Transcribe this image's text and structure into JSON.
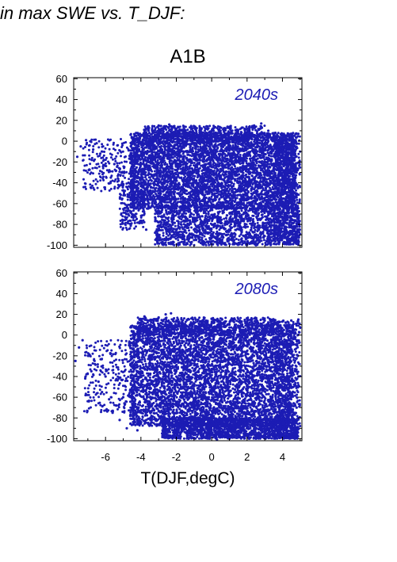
{
  "title": "in max SWE vs. T_DJF:",
  "scenario": "A1B",
  "xlabel": "T(DJF,degC)",
  "point_color": "#1c1cb4",
  "chart_data": [
    {
      "type": "scatter",
      "panel_label": "2040s",
      "xlim": [
        -7.8,
        5.1
      ],
      "ylim": [
        -102,
        61
      ],
      "xticks": [
        -6,
        -4,
        -2,
        0,
        2,
        4
      ],
      "yticks": [
        60,
        40,
        20,
        0,
        -20,
        -40,
        -60,
        -80,
        -100
      ],
      "points": [
        [
          -7.6,
          -15
        ],
        [
          -7.4,
          -5
        ],
        [
          -7.1,
          1
        ],
        [
          -6.9,
          -4
        ],
        [
          -6.7,
          -8
        ],
        [
          -6.5,
          -2
        ],
        [
          -6.3,
          -12
        ],
        [
          -6.1,
          -18
        ],
        [
          -5.9,
          -28
        ],
        [
          -5.7,
          -35
        ],
        [
          -5.5,
          -22
        ],
        [
          -5.3,
          -45
        ],
        [
          -5.1,
          -30
        ],
        [
          -4.9,
          -52
        ],
        [
          -4.7,
          -40
        ],
        [
          -4.5,
          -60
        ],
        [
          -4.3,
          -70
        ],
        [
          -4.1,
          -78
        ],
        [
          -3.9,
          -50
        ],
        [
          -3.7,
          -85
        ],
        [
          -3.6,
          14
        ],
        [
          -3.3,
          10
        ],
        [
          -3.0,
          15
        ],
        [
          -2.7,
          12
        ],
        [
          -2.4,
          16
        ],
        [
          -2.0,
          12
        ],
        [
          -1.5,
          9
        ],
        [
          -1.0,
          8
        ],
        [
          -0.5,
          5
        ],
        [
          0,
          7
        ],
        [
          0.5,
          10
        ],
        [
          1.0,
          8
        ],
        [
          1.5,
          7
        ],
        [
          2.0,
          12
        ],
        [
          2.4,
          15
        ],
        [
          2.8,
          17
        ],
        [
          3.2,
          10
        ],
        [
          3.6,
          8
        ],
        [
          4.0,
          7
        ],
        [
          4.5,
          6
        ],
        [
          4.9,
          7
        ],
        [
          -3.2,
          -88
        ],
        [
          -2.5,
          -80
        ],
        [
          -1.8,
          -92
        ],
        [
          -1.0,
          -95
        ],
        [
          -0.3,
          -88
        ],
        [
          0.5,
          -96
        ],
        [
          1.2,
          -99
        ],
        [
          1.9,
          -92
        ],
        [
          2.5,
          -100
        ],
        [
          3.1,
          -96
        ],
        [
          3.8,
          -98
        ],
        [
          4.4,
          -94
        ],
        [
          4.9,
          -95
        ],
        [
          4.6,
          -60
        ],
        [
          4.8,
          -30
        ],
        [
          4.7,
          -45
        ],
        [
          4.9,
          -75
        ]
      ],
      "dense_regions": [
        {
          "x": [
            -4.6,
            4.8
          ],
          "y": [
            -65,
            8
          ],
          "n": 5200
        },
        {
          "x": [
            -3.9,
            3.0
          ],
          "y": [
            0,
            15
          ],
          "n": 550
        },
        {
          "x": [
            -3.2,
            4.9
          ],
          "y": [
            -100,
            -62
          ],
          "n": 1700
        },
        {
          "x": [
            -7.3,
            -4.4
          ],
          "y": [
            -48,
            2
          ],
          "n": 220
        },
        {
          "x": [
            -5.2,
            -3.8
          ],
          "y": [
            -85,
            -40
          ],
          "n": 200
        },
        {
          "x": [
            3.5,
            5.0
          ],
          "y": [
            -100,
            8
          ],
          "n": 650
        }
      ]
    },
    {
      "type": "scatter",
      "panel_label": "2080s",
      "xlim": [
        -7.8,
        5.1
      ],
      "ylim": [
        -102,
        61
      ],
      "xticks": [
        -6,
        -4,
        -2,
        0,
        2,
        4
      ],
      "yticks": [
        60,
        40,
        20,
        0,
        -20,
        -40,
        -60,
        -80,
        -100
      ],
      "points": [
        [
          -7.7,
          -25
        ],
        [
          -7.5,
          -12
        ],
        [
          -7.3,
          -5
        ],
        [
          -7.0,
          -20
        ],
        [
          -6.8,
          -35
        ],
        [
          -6.6,
          -28
        ],
        [
          -6.4,
          -45
        ],
        [
          -6.2,
          -55
        ],
        [
          -6.0,
          -40
        ],
        [
          -5.8,
          -62
        ],
        [
          -5.6,
          -75
        ],
        [
          -5.4,
          -68
        ],
        [
          -5.2,
          -82
        ],
        [
          -5.0,
          -60
        ],
        [
          -4.8,
          -90
        ],
        [
          -4.6,
          -78
        ],
        [
          -4.4,
          -85
        ],
        [
          -4.2,
          -92
        ],
        [
          -3.8,
          18
        ],
        [
          -3.5,
          14
        ],
        [
          -3.0,
          17
        ],
        [
          -2.6,
          20
        ],
        [
          -2.3,
          21
        ],
        [
          -2.0,
          13
        ],
        [
          -1.5,
          10
        ],
        [
          -1.0,
          11
        ],
        [
          -0.5,
          9
        ],
        [
          0,
          11
        ],
        [
          0.5,
          12
        ],
        [
          1.0,
          10
        ],
        [
          1.5,
          9
        ],
        [
          2.0,
          13
        ],
        [
          2.5,
          12
        ],
        [
          3.0,
          14
        ],
        [
          3.5,
          15
        ],
        [
          4.0,
          13
        ],
        [
          4.5,
          14
        ],
        [
          4.9,
          15
        ],
        [
          -2.8,
          -95
        ],
        [
          -2.0,
          -98
        ],
        [
          -1.3,
          -100
        ],
        [
          -0.5,
          -99
        ],
        [
          0.3,
          -101
        ],
        [
          1.0,
          -100
        ],
        [
          1.8,
          -98
        ],
        [
          2.5,
          -100
        ],
        [
          3.2,
          -97
        ],
        [
          4.0,
          -99
        ],
        [
          4.7,
          -100
        ],
        [
          4.6,
          -55
        ],
        [
          4.8,
          -70
        ],
        [
          4.9,
          -40
        ],
        [
          4.7,
          -85
        ]
      ],
      "dense_regions": [
        {
          "x": [
            -4.6,
            4.6
          ],
          "y": [
            -88,
            10
          ],
          "n": 6200
        },
        {
          "x": [
            -4.2,
            3.6
          ],
          "y": [
            0,
            17
          ],
          "n": 650
        },
        {
          "x": [
            -2.8,
            4.9
          ],
          "y": [
            -100,
            -80
          ],
          "n": 1600
        },
        {
          "x": [
            -7.2,
            -4.4
          ],
          "y": [
            -75,
            -5
          ],
          "n": 260
        },
        {
          "x": [
            3.6,
            5.0
          ],
          "y": [
            -100,
            14
          ],
          "n": 500
        }
      ]
    }
  ]
}
